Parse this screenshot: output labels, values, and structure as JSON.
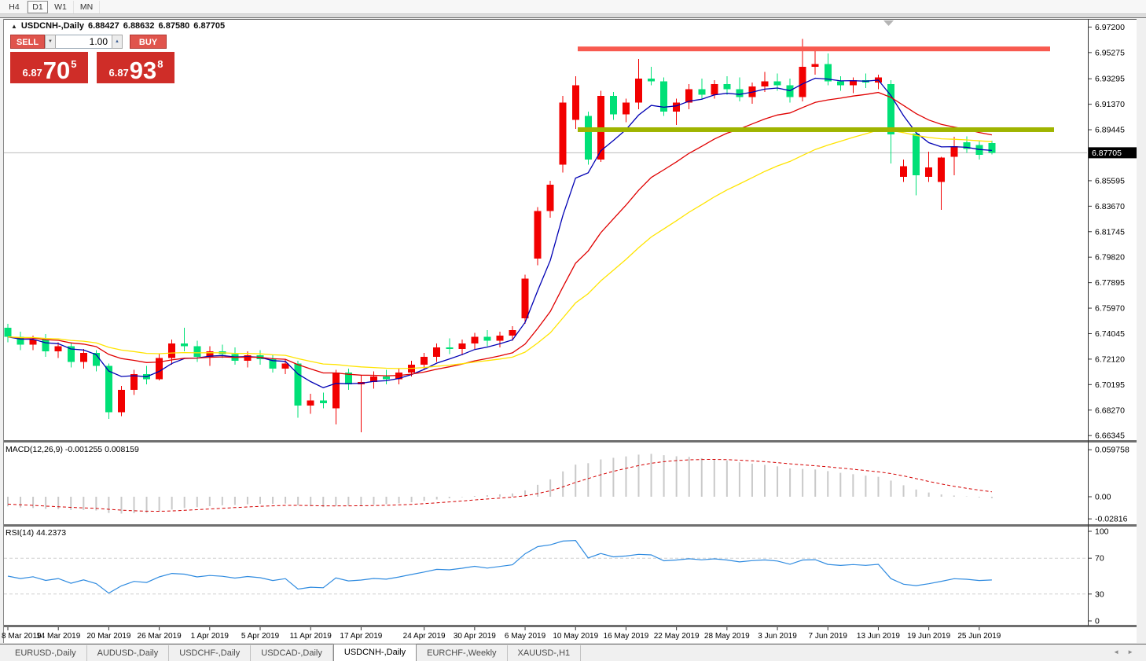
{
  "timeframe_toolbar": {
    "buttons": [
      {
        "label": "H4",
        "active": false
      },
      {
        "label": "D1",
        "active": true
      },
      {
        "label": "W1",
        "active": false
      },
      {
        "label": "MN",
        "active": false
      }
    ]
  },
  "chart": {
    "title": {
      "collapse_icon": "▲",
      "symbol": "USDCNH-,Daily",
      "open": "6.88427",
      "high": "6.88632",
      "low": "6.87580",
      "close": "6.87705"
    },
    "one_click_panel": {
      "sell_label": "SELL",
      "buy_label": "BUY",
      "volume_value": "1.00",
      "spin_down_icon": "▼",
      "spin_up_icon": "▲",
      "sell_price": {
        "prefix": "6.87",
        "big": "70",
        "sup": "5"
      },
      "buy_price": {
        "prefix": "6.87",
        "big": "93",
        "sup": "8"
      }
    },
    "scroll_marker_icon": "▼"
  },
  "indicators": {
    "macd_label": "MACD(12,26,9) -0.001255 0.008159",
    "rsi_label": "RSI(14) 44.2373"
  },
  "tab_bar": {
    "tabs": [
      {
        "label": "EURUSD-,Daily",
        "active": false
      },
      {
        "label": "AUDUSD-,Daily",
        "active": false
      },
      {
        "label": "USDCHF-,Daily",
        "active": false
      },
      {
        "label": "USDCAD-,Daily",
        "active": false
      },
      {
        "label": "USDCNH-,Daily",
        "active": true
      },
      {
        "label": "EURCHF-,Weekly",
        "active": false
      },
      {
        "label": "XAUUSD-,H1",
        "active": false
      }
    ],
    "scroll_left_icon": "◄",
    "scroll_right_icon": "►"
  },
  "chart_data": {
    "type": "candlestick",
    "symbol": "USDCNH",
    "timeframe": "Daily",
    "up_color": "#f20000",
    "down_color": "#00e077",
    "background": "#ffffff",
    "current_price": 6.87705,
    "current_price_label": "6.87705",
    "y_range": [
      6.66,
      6.977
    ],
    "price_axis_labels": [
      "6.97200",
      "6.95275",
      "6.93295",
      "6.91370",
      "6.89445",
      "6.85595",
      "6.83670",
      "6.81745",
      "6.79820",
      "6.77895",
      "6.75970",
      "6.74045",
      "6.72120",
      "6.70195",
      "6.68270",
      "6.66345"
    ],
    "date_labels": [
      {
        "i": 0,
        "t": "8 Mar 2019"
      },
      {
        "i": 4,
        "t": "14 Mar 2019"
      },
      {
        "i": 8,
        "t": "20 Mar 2019"
      },
      {
        "i": 12,
        "t": "26 Mar 2019"
      },
      {
        "i": 16,
        "t": "1 Apr 2019"
      },
      {
        "i": 20,
        "t": "5 Apr 2019"
      },
      {
        "i": 24,
        "t": "11 Apr 2019"
      },
      {
        "i": 28,
        "t": "17 Apr 2019"
      },
      {
        "i": 33,
        "t": "24 Apr 2019"
      },
      {
        "i": 37,
        "t": "30 Apr 2019"
      },
      {
        "i": 41,
        "t": "6 May 2019"
      },
      {
        "i": 45,
        "t": "10 May 2019"
      },
      {
        "i": 49,
        "t": "16 May 2019"
      },
      {
        "i": 53,
        "t": "22 May 2019"
      },
      {
        "i": 57,
        "t": "28 May 2019"
      },
      {
        "i": 61,
        "t": "3 Jun 2019"
      },
      {
        "i": 65,
        "t": "7 Jun 2019"
      },
      {
        "i": 69,
        "t": "13 Jun 2019"
      },
      {
        "i": 73,
        "t": "19 Jun 2019"
      },
      {
        "i": 77,
        "t": "25 Jun 2019"
      }
    ],
    "candles": [
      [
        6.745,
        6.748,
        6.734,
        6.738
      ],
      [
        6.738,
        6.742,
        6.728,
        6.732
      ],
      [
        6.732,
        6.739,
        6.728,
        6.736
      ],
      [
        6.736,
        6.74,
        6.723,
        6.727
      ],
      [
        6.727,
        6.734,
        6.722,
        6.731
      ],
      [
        6.731,
        6.734,
        6.715,
        6.719
      ],
      [
        6.719,
        6.729,
        6.714,
        6.726
      ],
      [
        6.726,
        6.728,
        6.712,
        6.716
      ],
      [
        6.716,
        6.718,
        6.676,
        6.681
      ],
      [
        6.681,
        6.701,
        6.678,
        6.698
      ],
      [
        6.698,
        6.713,
        6.694,
        6.71
      ],
      [
        6.71,
        6.716,
        6.702,
        6.706
      ],
      [
        6.706,
        6.725,
        6.705,
        6.722
      ],
      [
        6.722,
        6.736,
        6.717,
        6.733
      ],
      [
        6.733,
        6.745,
        6.727,
        6.731
      ],
      [
        6.731,
        6.735,
        6.719,
        6.723
      ],
      [
        6.723,
        6.731,
        6.716,
        6.727
      ],
      [
        6.727,
        6.732,
        6.722,
        6.725
      ],
      [
        6.725,
        6.73,
        6.717,
        6.72
      ],
      [
        6.72,
        6.727,
        6.715,
        6.724
      ],
      [
        6.724,
        6.728,
        6.717,
        6.721
      ],
      [
        6.721,
        6.724,
        6.711,
        6.714
      ],
      [
        6.714,
        6.721,
        6.71,
        6.718
      ],
      [
        6.718,
        6.72,
        6.677,
        6.686
      ],
      [
        6.686,
        6.695,
        6.68,
        6.69
      ],
      [
        6.69,
        6.696,
        6.684,
        6.688
      ],
      [
        6.684,
        6.713,
        6.672,
        6.711
      ],
      [
        6.711,
        6.714,
        6.698,
        6.702
      ],
      [
        6.702,
        6.709,
        6.666,
        6.704
      ],
      [
        6.704,
        6.712,
        6.699,
        6.708
      ],
      [
        6.708,
        6.713,
        6.702,
        6.706
      ],
      [
        6.706,
        6.714,
        6.702,
        6.711
      ],
      [
        6.711,
        6.72,
        6.708,
        6.717
      ],
      [
        6.717,
        6.726,
        6.713,
        6.723
      ],
      [
        6.723,
        6.733,
        6.719,
        6.73
      ],
      [
        6.73,
        6.737,
        6.725,
        6.729
      ],
      [
        6.729,
        6.736,
        6.724,
        6.733
      ],
      [
        6.733,
        6.741,
        6.729,
        6.738
      ],
      [
        6.738,
        6.743,
        6.731,
        6.735
      ],
      [
        6.735,
        6.742,
        6.73,
        6.739
      ],
      [
        6.739,
        6.746,
        6.735,
        6.743
      ],
      [
        6.752,
        6.785,
        6.748,
        6.782
      ],
      [
        6.797,
        6.836,
        6.792,
        6.833
      ],
      [
        6.833,
        6.856,
        6.828,
        6.853
      ],
      [
        6.868,
        6.92,
        6.862,
        6.915
      ],
      [
        6.902,
        6.935,
        6.895,
        6.928
      ],
      [
        6.905,
        6.908,
        6.868,
        6.872
      ],
      [
        6.872,
        6.924,
        6.87,
        6.92
      ],
      [
        6.92,
        6.923,
        6.902,
        6.906
      ],
      [
        6.906,
        6.918,
        6.9,
        6.915
      ],
      [
        6.915,
        6.948,
        6.91,
        6.933
      ],
      [
        6.933,
        6.942,
        6.928,
        6.931
      ],
      [
        6.931,
        6.934,
        6.905,
        6.908
      ],
      [
        6.908,
        6.918,
        6.898,
        6.915
      ],
      [
        6.915,
        6.929,
        6.91,
        6.925
      ],
      [
        6.925,
        6.933,
        6.917,
        6.921
      ],
      [
        6.921,
        6.932,
        6.918,
        6.929
      ],
      [
        6.929,
        6.935,
        6.921,
        6.925
      ],
      [
        6.925,
        6.934,
        6.916,
        6.919
      ],
      [
        6.919,
        6.93,
        6.914,
        6.927
      ],
      [
        6.927,
        6.938,
        6.923,
        6.931
      ],
      [
        6.931,
        6.937,
        6.924,
        6.928
      ],
      [
        6.928,
        6.933,
        6.915,
        6.919
      ],
      [
        6.919,
        6.963,
        6.916,
        6.942
      ],
      [
        6.942,
        6.956,
        6.936,
        6.944
      ],
      [
        6.944,
        6.952,
        6.928,
        6.931
      ],
      [
        6.931,
        6.935,
        6.924,
        6.928
      ],
      [
        6.928,
        6.934,
        6.922,
        6.932
      ],
      [
        6.932,
        6.937,
        6.926,
        6.93
      ],
      [
        6.93,
        6.936,
        6.925,
        6.934
      ],
      [
        6.929,
        6.932,
        6.869,
        6.891
      ],
      [
        6.859,
        6.872,
        6.855,
        6.867
      ],
      [
        6.8915,
        6.893,
        6.845,
        6.86
      ],
      [
        6.859,
        6.878,
        6.855,
        6.866
      ],
      [
        6.855,
        6.874,
        6.834,
        6.8735
      ],
      [
        6.874,
        6.889,
        6.86,
        6.882
      ],
      [
        6.885,
        6.8895,
        6.877,
        6.88
      ],
      [
        6.883,
        6.886,
        6.872,
        6.8755
      ],
      [
        6.88427,
        6.88632,
        6.8758,
        6.87705
      ]
    ],
    "ma_lines": [
      {
        "name": "fast-ema",
        "period": 6,
        "color": "#0000b4"
      },
      {
        "name": "medium-ema",
        "period": 16,
        "color": "#e00000"
      },
      {
        "name": "slow-ema",
        "period": 30,
        "color": "#ffe400"
      }
    ],
    "hlines": [
      {
        "name": "resistance-line",
        "price": 6.9555,
        "color": "#f85a50",
        "x_from": 735,
        "x_to": 1336,
        "thickness": 6
      },
      {
        "name": "support-line",
        "price": 6.8945,
        "color": "#9fb400",
        "x_from": 735,
        "x_to": 1341,
        "thickness": 6
      }
    ],
    "macd": {
      "params": "12,26,9",
      "main_value": -0.001255,
      "signal_value": 0.008159,
      "bar_color": "#c9c9c9",
      "signal_color": "#d40000",
      "axis_labels": [
        {
          "label": "0.059758",
          "value": 0.059758
        },
        {
          "label": "0.00",
          "value": 0
        },
        {
          "label": "-0.02816",
          "value": -0.02816
        }
      ],
      "range": [
        -0.034,
        0.066
      ]
    },
    "rsi": {
      "period": 14,
      "value": 44.2373,
      "line_color": "#2f8be0",
      "levels": [
        70,
        30
      ],
      "axis_labels": [
        {
          "label": "100",
          "value": 100
        },
        {
          "label": "70",
          "value": 70
        },
        {
          "label": "30",
          "value": 30
        },
        {
          "label": "0",
          "value": 0
        }
      ],
      "range": [
        0,
        100
      ]
    }
  }
}
